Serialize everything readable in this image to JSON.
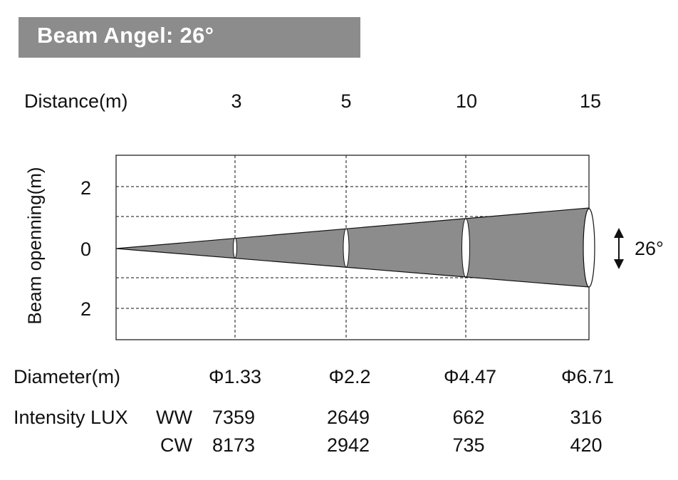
{
  "title": "Beam Angel: 26°",
  "distance_label": "Distance(m)",
  "distances": [
    "3",
    "5",
    "10",
    "15"
  ],
  "y_axis_label": "Beam openning(m)",
  "y_ticks": [
    "2",
    "0",
    "2"
  ],
  "angle_label": "26°",
  "diameter_label": "Diameter(m)",
  "diameters": [
    "Φ1.33",
    "Φ2.2",
    "Φ4.47",
    "Φ6.71"
  ],
  "intensity_label": "Intensity LUX",
  "ww_label": "WW",
  "cw_label": "CW",
  "ww_values": [
    "7359",
    "2649",
    "662",
    "316"
  ],
  "cw_values": [
    "8173",
    "2942",
    "735",
    "420"
  ],
  "colors": {
    "title_bg": "#8c8c8c",
    "beam_fill": "#8c8c8c",
    "line": "#111111"
  },
  "chart_data": {
    "type": "diagram",
    "beam_angle_deg": 26,
    "distance_m": [
      3,
      5,
      10,
      15
    ],
    "diameter_m": [
      1.33,
      2.2,
      4.47,
      6.71
    ],
    "intensity_lux": {
      "WW": [
        7359,
        2649,
        662,
        316
      ],
      "CW": [
        8173,
        2942,
        735,
        420
      ]
    }
  }
}
